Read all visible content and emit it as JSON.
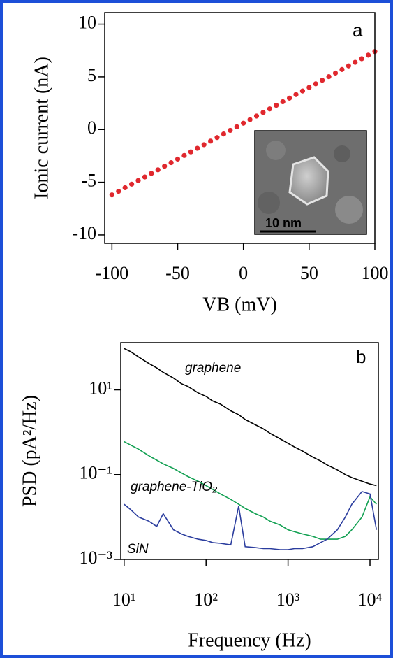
{
  "chart_data": [
    {
      "type": "scatter",
      "panel_label": "a",
      "x_label": "VB (mV)",
      "y_label": "Ionic current (nA)",
      "inset_label": "10 nm",
      "color": "#e0282e",
      "x": [
        -100,
        -95,
        -90,
        -85,
        -80,
        -75,
        -70,
        -65,
        -60,
        -55,
        -50,
        -45,
        -40,
        -35,
        -30,
        -25,
        -20,
        -15,
        -10,
        -5,
        0,
        5,
        10,
        15,
        20,
        25,
        30,
        35,
        40,
        45,
        50,
        55,
        60,
        65,
        70,
        75,
        80,
        85,
        90,
        95,
        100
      ],
      "values": [
        -6.2,
        -5.86,
        -5.52,
        -5.18,
        -4.84,
        -4.5,
        -4.16,
        -3.82,
        -3.48,
        -3.14,
        -2.8,
        -2.46,
        -2.12,
        -1.78,
        -1.44,
        -1.1,
        -0.76,
        -0.42,
        -0.08,
        0.26,
        0.6,
        0.94,
        1.28,
        1.62,
        1.96,
        2.3,
        2.64,
        2.98,
        3.32,
        3.66,
        4.0,
        4.34,
        4.68,
        5.02,
        5.36,
        5.7,
        6.04,
        6.38,
        6.72,
        7.06,
        7.4
      ],
      "xlim": [
        -105.5,
        100
      ],
      "ylim": [
        -10.8,
        11.1
      ],
      "xticks": [
        -100,
        -50,
        0,
        50,
        100
      ],
      "yticks": [
        -10,
        -5,
        0,
        5,
        10
      ]
    },
    {
      "type": "line",
      "panel_label": "b",
      "x_label": "Frequency (Hz)",
      "y_label": "PSD (pA²/Hz)",
      "log_x": true,
      "log_y": true,
      "x": [
        10,
        12,
        15,
        20,
        25,
        30,
        40,
        50,
        60,
        80,
        100,
        120,
        150,
        200,
        250,
        300,
        400,
        500,
        600,
        800,
        1000,
        1200,
        1500,
        2000,
        2500,
        3000,
        4000,
        5000,
        6000,
        8000,
        10000,
        12000
      ],
      "series": [
        {
          "name": "graphene",
          "color": "#000000",
          "values": [
            95,
            80,
            60,
            42,
            33,
            26,
            19,
            14,
            12,
            8.5,
            7,
            5.5,
            4.6,
            3.2,
            2.6,
            2.0,
            1.5,
            1.2,
            0.95,
            0.7,
            0.55,
            0.45,
            0.36,
            0.26,
            0.21,
            0.17,
            0.13,
            0.1,
            0.085,
            0.07,
            0.06,
            0.055
          ]
        },
        {
          "name": "graphene-TiO₂",
          "color": "#12a052",
          "values": [
            0.6,
            0.5,
            0.4,
            0.28,
            0.22,
            0.18,
            0.14,
            0.11,
            0.09,
            0.07,
            0.055,
            0.045,
            0.035,
            0.026,
            0.02,
            0.016,
            0.012,
            0.01,
            0.008,
            0.0065,
            0.005,
            0.0045,
            0.004,
            0.0035,
            0.003,
            0.003,
            0.003,
            0.0035,
            0.005,
            0.01,
            0.03,
            0.02
          ]
        },
        {
          "name": "SiN",
          "color": "#2b3d9e",
          "values": [
            0.02,
            0.015,
            0.01,
            0.008,
            0.006,
            0.012,
            0.005,
            0.004,
            0.0035,
            0.003,
            0.0028,
            0.0025,
            0.0024,
            0.0022,
            0.018,
            0.002,
            0.0019,
            0.0018,
            0.0018,
            0.0017,
            0.0017,
            0.0018,
            0.0018,
            0.002,
            0.0025,
            0.003,
            0.005,
            0.01,
            0.02,
            0.04,
            0.035,
            0.005
          ]
        }
      ],
      "xlim": [
        9.1,
        12650
      ],
      "ylim": [
        0.001,
        130
      ],
      "xticks": [
        {
          "value": 10,
          "label": "10¹"
        },
        {
          "value": 100,
          "label": "10²"
        },
        {
          "value": 1000,
          "label": "10³"
        },
        {
          "value": 10000,
          "label": "10⁴"
        }
      ],
      "yticks": [
        {
          "value": 0.001,
          "label": "10⁻³"
        },
        {
          "value": 0.1,
          "label": "10⁻¹"
        },
        {
          "value": 10,
          "label": "10¹"
        }
      ]
    }
  ]
}
